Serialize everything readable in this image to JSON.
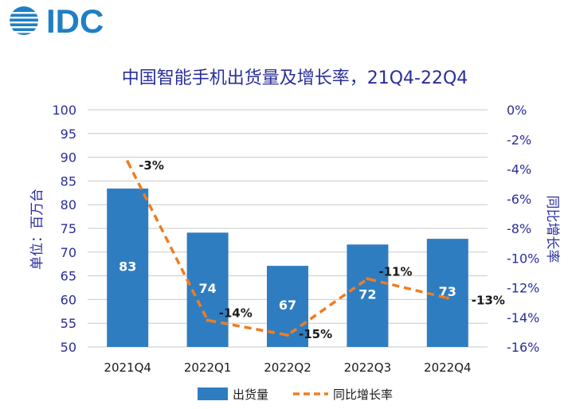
{
  "brand": {
    "logo_text": "IDC",
    "logo_color": "#1f7fc4"
  },
  "colors": {
    "bar": "#2f7dc1",
    "line": "#ef7d22",
    "axis_text": "#2a2e9a",
    "title": "#2a2e9a",
    "bar_label": "#ffffff",
    "point_label": "#1a1a1a",
    "grid": "#c9c9c9"
  },
  "chart_data": {
    "type": "bar",
    "title": "中国智能手机出货量及增长率，21Q4-22Q4",
    "categories": [
      "2021Q4",
      "2022Q1",
      "2022Q2",
      "2022Q3",
      "2022Q4"
    ],
    "ylabel": "单位：百万台",
    "y2label": "同比增长率",
    "ylim": [
      50,
      100
    ],
    "yticks": [
      50,
      55,
      60,
      65,
      70,
      75,
      80,
      85,
      90,
      95,
      100
    ],
    "y2lim": [
      -16,
      0
    ],
    "y2ticks": [
      "0%",
      "-2%",
      "-4%",
      "-6%",
      "-8%",
      "-10%",
      "-12%",
      "-14%",
      "-16%"
    ],
    "grid": true,
    "legend_position": "bottom",
    "series": [
      {
        "name": "出货量",
        "kind": "bar",
        "axis": "left",
        "values": [
          83.4,
          74.1,
          67.1,
          71.6,
          72.8
        ],
        "labels": [
          "83",
          "74",
          "67",
          "72",
          "73"
        ]
      },
      {
        "name": "同比增长率",
        "kind": "line",
        "axis": "right",
        "dashed": true,
        "values": [
          -3.5,
          -14.2,
          -15.2,
          -11.4,
          -12.7
        ],
        "labels": [
          "-3%",
          "-14%",
          "-15%",
          "-11%",
          "-13%"
        ]
      }
    ]
  }
}
